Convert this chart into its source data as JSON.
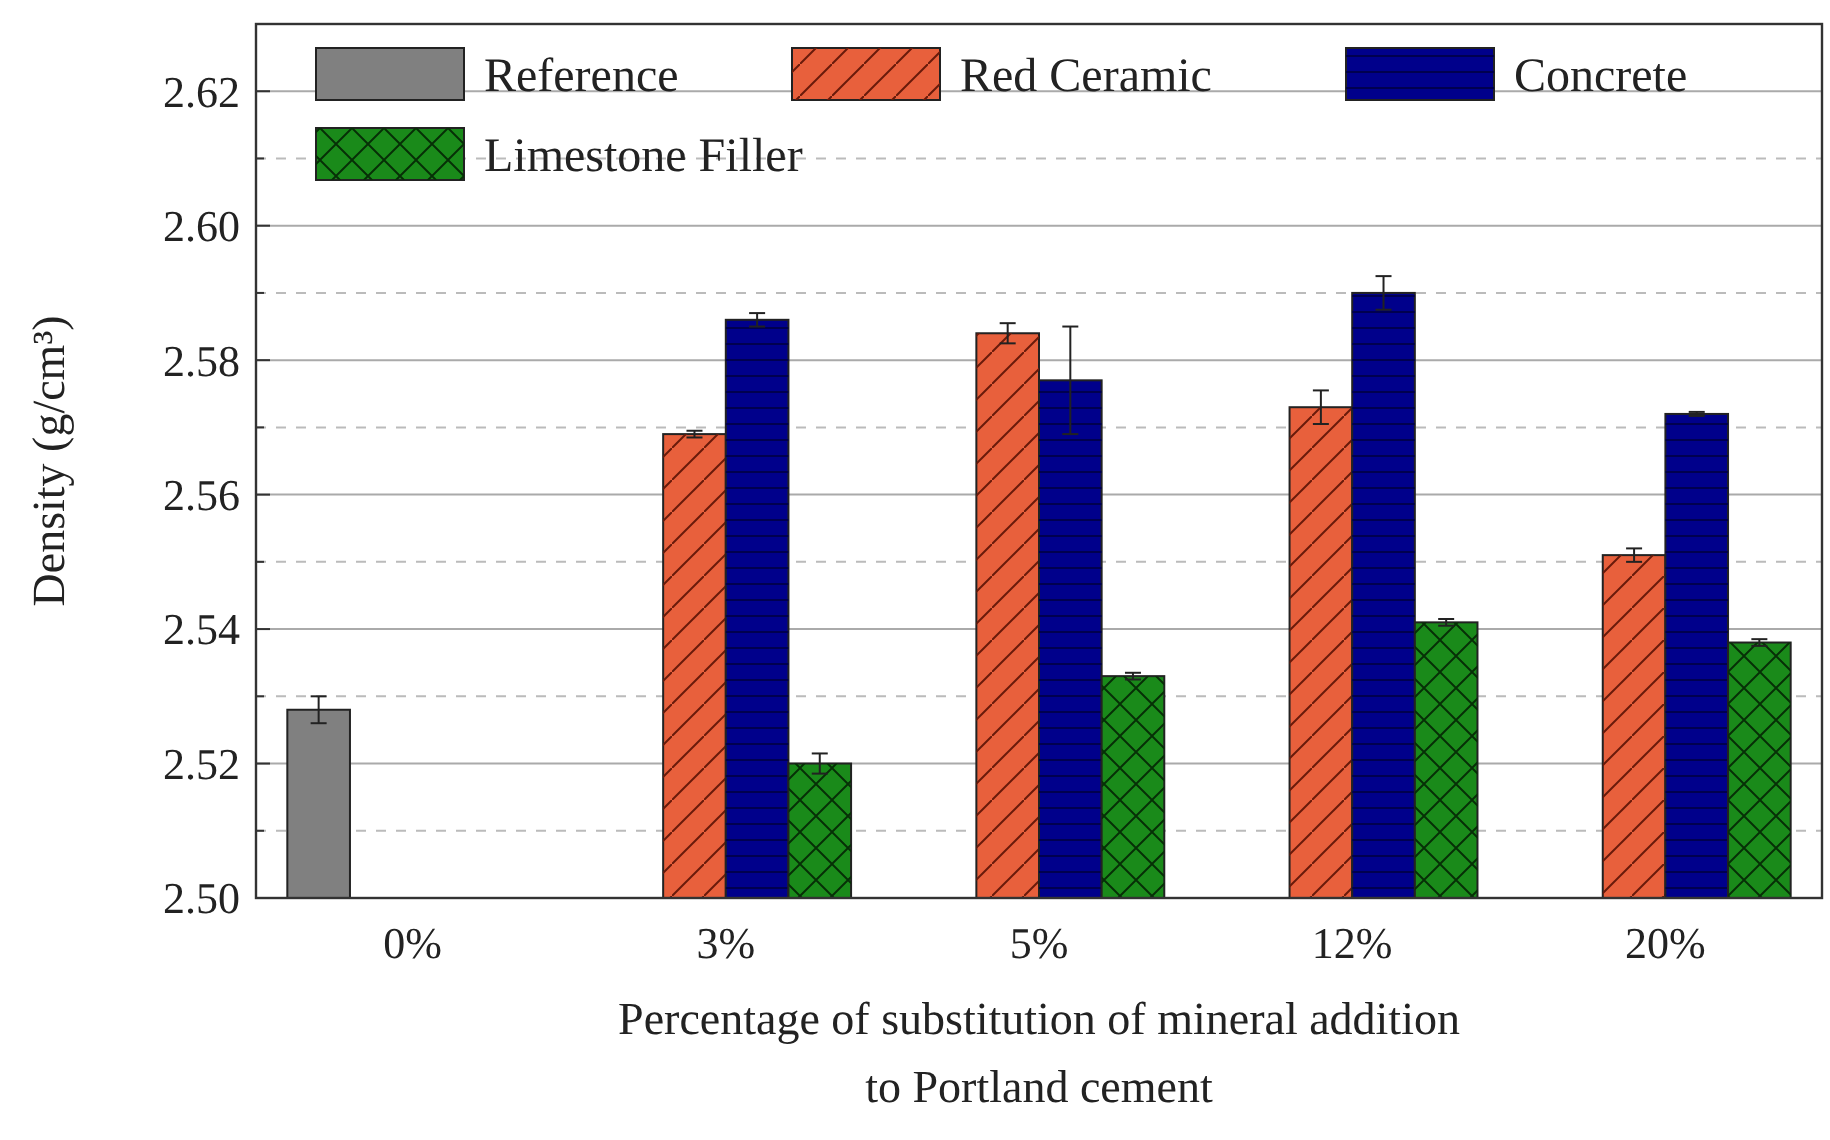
{
  "chart_data": {
    "type": "bar",
    "xlabel": "Percentage of substitution of mineral addition\nto Portland cement",
    "ylabel": "Density (g/cm³)",
    "categories": [
      "0%",
      "3%",
      "5%",
      "12%",
      "20%"
    ],
    "series": [
      {
        "name": "Reference",
        "color": "#808080",
        "values": [
          2.528,
          null,
          null,
          null,
          null
        ],
        "errors": [
          0.002,
          null,
          null,
          null,
          null
        ]
      },
      {
        "name": "Red Ceramic",
        "color": "#e8603c",
        "values": [
          null,
          2.569,
          2.584,
          2.573,
          2.551
        ],
        "errors": [
          null,
          0.0005,
          0.0015,
          0.0025,
          0.001
        ]
      },
      {
        "name": "Concrete",
        "color": "#00008b",
        "values": [
          null,
          2.586,
          2.577,
          2.59,
          2.572
        ],
        "errors": [
          null,
          0.001,
          0.008,
          0.0025,
          0.0003
        ]
      },
      {
        "name": "Limestone Filler",
        "color": "#1a8a1a",
        "values": [
          null,
          2.52,
          2.533,
          2.541,
          2.538
        ],
        "errors": [
          null,
          0.0015,
          0.0005,
          0.0005,
          0.0005
        ]
      }
    ],
    "ylim": [
      2.5,
      2.63
    ],
    "yticks": [
      {
        "value": 2.5,
        "label": "2.50"
      },
      {
        "value": 2.51,
        "label": null
      },
      {
        "value": 2.52,
        "label": "2.52"
      },
      {
        "value": 2.53,
        "label": null
      },
      {
        "value": 2.54,
        "label": "2.54"
      },
      {
        "value": 2.55,
        "label": null
      },
      {
        "value": 2.56,
        "label": "2.56"
      },
      {
        "value": 2.57,
        "label": null
      },
      {
        "value": 2.58,
        "label": "2.58"
      },
      {
        "value": 2.59,
        "label": null
      },
      {
        "value": 2.6,
        "label": "2.60"
      },
      {
        "value": 2.61,
        "label": null
      },
      {
        "value": 2.62,
        "label": "2.62"
      }
    ],
    "grid": true,
    "legend": "top"
  }
}
